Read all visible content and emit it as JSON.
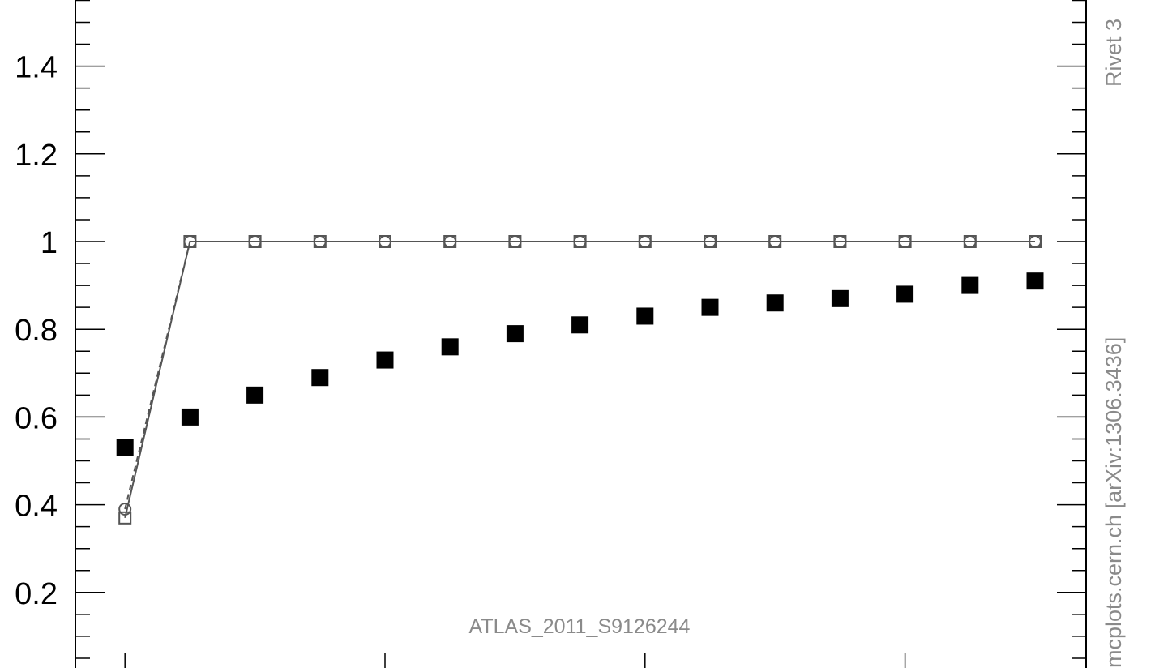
{
  "chart_data": {
    "type": "scatter",
    "title": "",
    "xlabel": "",
    "ylabel": "",
    "ylim": [
      0.0,
      1.56
    ],
    "y_ticks": [
      {
        "value": 0.2,
        "label": "0.2"
      },
      {
        "value": 0.4,
        "label": "0.4"
      },
      {
        "value": 0.6,
        "label": "0.6"
      },
      {
        "value": 0.8,
        "label": "0.8"
      },
      {
        "value": 1.0,
        "label": "1"
      },
      {
        "value": 1.2,
        "label": "1.2"
      },
      {
        "value": 1.4,
        "label": "1.4"
      }
    ],
    "x": [
      1,
      2,
      3,
      4,
      5,
      6,
      7,
      8,
      9,
      10,
      11,
      12,
      13,
      14,
      15
    ],
    "series": [
      {
        "marker": "filled-square",
        "values": [
          0.53,
          0.6,
          0.65,
          0.69,
          0.73,
          0.76,
          0.79,
          0.81,
          0.83,
          0.85,
          0.86,
          0.87,
          0.88,
          0.9,
          0.91
        ]
      },
      {
        "marker": "open-square",
        "line": "solid",
        "values": [
          0.37,
          1,
          1,
          1,
          1,
          1,
          1,
          1,
          1,
          1,
          1,
          1,
          1,
          1,
          1
        ]
      },
      {
        "marker": "open-circle",
        "line": "dashed",
        "values": [
          0.39,
          1,
          1,
          1,
          1,
          1,
          1,
          1,
          1,
          1,
          1,
          1,
          1,
          1,
          1
        ]
      }
    ],
    "annotation": "ATLAS_2011_S9126244",
    "side_text_right": "mcplots.cern.ch [arXiv:1306.3436]",
    "side_text_top": "Rivet 3",
    "colors": {
      "data": "#000000",
      "mc": "#555555",
      "watermark": "#8a8a8a"
    }
  }
}
